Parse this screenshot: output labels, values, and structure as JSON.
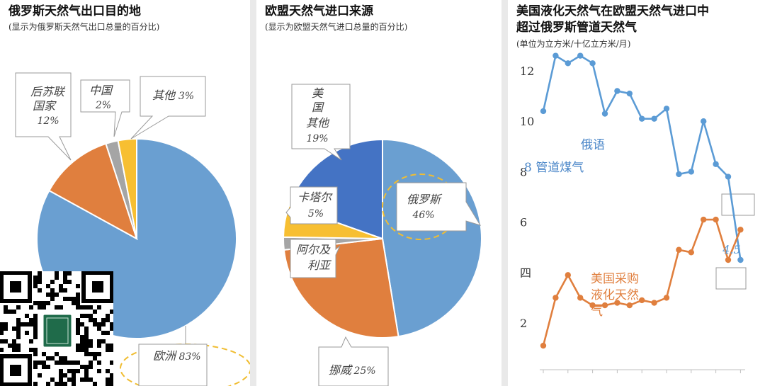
{
  "panel1": {
    "title": "俄罗斯天然气出口目的地",
    "subtitle": "(显示为俄罗斯天然气出口总量的百分比)",
    "chart_data": {
      "type": "pie",
      "slices": [
        {
          "label": "欧洲",
          "value": 83,
          "color": "#6a9fd1"
        },
        {
          "label": "后苏联国家",
          "value": 12,
          "color": "#e07f3e"
        },
        {
          "label": "中国",
          "value": 2,
          "color": "#a5a5a5"
        },
        {
          "label": "其他",
          "value": 3,
          "color": "#f7bf32"
        }
      ]
    },
    "labels": {
      "europe_name": "欧洲",
      "europe_pct": "83%",
      "post_soviet_1": "后苏联",
      "post_soviet_2": "国家",
      "post_soviet_pct": "12%",
      "china_name": "中国",
      "china_pct": "2%",
      "other_name": "其他",
      "other_pct": "3%"
    }
  },
  "panel2": {
    "title": "欧盟天然气进口来源",
    "subtitle": "(显示为欧盟天然气进口总量的百分比)",
    "chart_data": {
      "type": "pie",
      "slices": [
        {
          "label": "俄罗斯",
          "value": 46,
          "color": "#6a9fd1"
        },
        {
          "label": "挪威",
          "value": 25,
          "color": "#e07f3e"
        },
        {
          "label": "阿尔及利亚",
          "value": 2,
          "color": "#a5a5a5"
        },
        {
          "label": "卡塔尔",
          "value": 5,
          "color": "#f7bf32"
        },
        {
          "label": "美国其他",
          "value": 19,
          "color": "#4473c4"
        }
      ]
    },
    "labels": {
      "us_1": "美",
      "us_2": "国",
      "us_3": "其他",
      "us_pct": "19%",
      "qatar_name": "卡塔尔",
      "qatar_pct": "5%",
      "russia_name": "俄罗斯",
      "russia_pct": "46%",
      "algeria_1": "阿尔及",
      "algeria_2": "利亚",
      "norway_name": "挪威",
      "norway_pct": "25%"
    }
  },
  "panel3": {
    "title_line1": "美国液化天然气在欧盟天然气进口中",
    "title_line2": "超过俄罗斯管道天然气",
    "subtitle": "(单位为立方米/十亿立方米/月)",
    "chart_data": {
      "type": "line",
      "y_tick_labels": [
        "12",
        "10",
        "8",
        "6",
        "四",
        "2"
      ],
      "ylim": [
        2,
        12.8
      ],
      "series": [
        {
          "name": "俄语管道煤气",
          "color": "#5b9bd5",
          "values": [
            10.4,
            12.6,
            12.3,
            12.6,
            12.3,
            10.3,
            11.2,
            11.1,
            10.1,
            10.1,
            10.5,
            7.9,
            8.0,
            10.0,
            8.3,
            7.8,
            4.5
          ]
        },
        {
          "name": "美国采购液化天然气",
          "color": "#e07f3e",
          "values": [
            1.1,
            3.0,
            3.9,
            3.0,
            2.7,
            2.7,
            2.8,
            2.7,
            2.9,
            2.8,
            3.0,
            4.9,
            4.8,
            6.1,
            6.1,
            4.5,
            5.7
          ]
        }
      ]
    },
    "labels": {
      "russian_1": "俄语",
      "russian_2": "8 管道煤气",
      "us_1": "美国采购",
      "us_2": "液化天然",
      "us_3": "气",
      "end_value": "4.5"
    }
  }
}
